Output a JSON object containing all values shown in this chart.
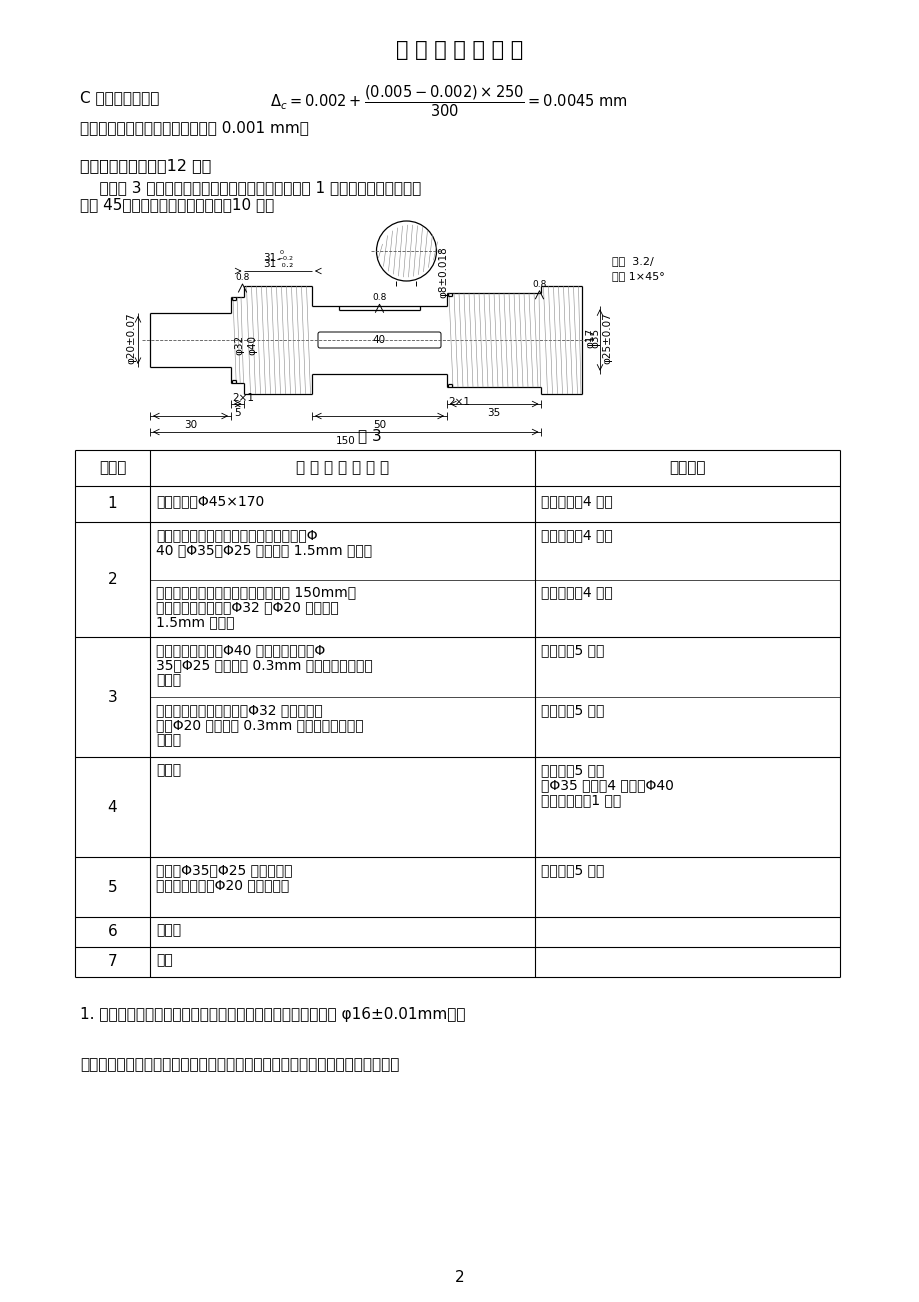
{
  "title": "一 寸 光 阴 不 可 轻",
  "bg_color": "#ffffff",
  "formula_line": "C 点处的位移量：",
  "formula_result": " = 0.0045 mm",
  "section_c_line2": "加工后，零件成锥形，锥度误差为 0.001 mm。",
  "section7_title": "七、编制工艺规程（12 分）",
  "section7_para1": "    编制题 3 所示阶梯轴零件的工艺规程，并填写在表 1 所示的表格中。零件材",
  "section7_para2": "料为 45，毛坏为棒料，生产批量：10 件。",
  "fig_caption": "图 3",
  "table_headers": [
    "工序号",
    "工 序 名 称 及 内 容",
    "定位基准"
  ],
  "row1_num": "1",
  "row1_col1": "下料，棒料Φ45×170",
  "row1_col2": "外圆表面（4 点）",
  "row2_num": "2",
  "row2_col1a": "夹左端，车右端面，打中心孔；粗车右端Φ",
  "row2_col1b": "40 、Φ35、Φ25 外圆，留 1.5mm 余量。",
  "row2_col2a": "外圆表面（4 点）",
  "row2_col1c": "调头，夹右端，车左端面，保证全长 150mm，",
  "row2_col1d": "打中心孔；粗车左端Φ32 、Φ20 外圆，留",
  "row2_col1e": "1.5mm 余量。",
  "row2_col2b": "外圆表面（4 点）",
  "row3_num": "3",
  "row3_col1a": "顶尖定位，半精车Φ40 外圆，成；精车Φ",
  "row3_col1b": "35、Φ25 外圆，留 0.3mm 磨量；切退刀槽，",
  "row3_col1c": "倒角。",
  "row3_col2a": "顶尖孔（5 点）",
  "row3_col1d": "调头，顶尖定位，半精车Φ32 外圆，成；",
  "row3_col1e": "精车Φ20 外圆，留 0.3mm 磨量；切退刀槽，",
  "row3_col1f": "倒角。",
  "row3_col2b": "顶尖孔（5 点）",
  "row4_num": "4",
  "row4_col1": "連键槽",
  "row4_col2a": "顶尖孔（5 点）",
  "row4_col2b": "或Φ35 外圆（4 点）＋Φ40",
  "row4_col2c": "外圆右端面（1 点）",
  "row5_num": "5",
  "row5_col1a": "磨一端Φ35、Φ25 外圆，成；",
  "row5_col1b": "调头，磨另一端Φ20 外圆，成。",
  "row5_col2": "顶尖孔（5 点）",
  "row6_num": "6",
  "row6_col1": "去毛刺",
  "row7_num": "7",
  "row7_col1": "检验",
  "bottom1": "1. 在甲、乙两台机床上加工同一种销轴，销轴外径尺寸要求为 φ16±0.01mm。加",
  "bottom2": "工后检验发现两台机床加工的销轴，其外径尺寸均接近正态分布，平均値分别为",
  "page_num": "2"
}
